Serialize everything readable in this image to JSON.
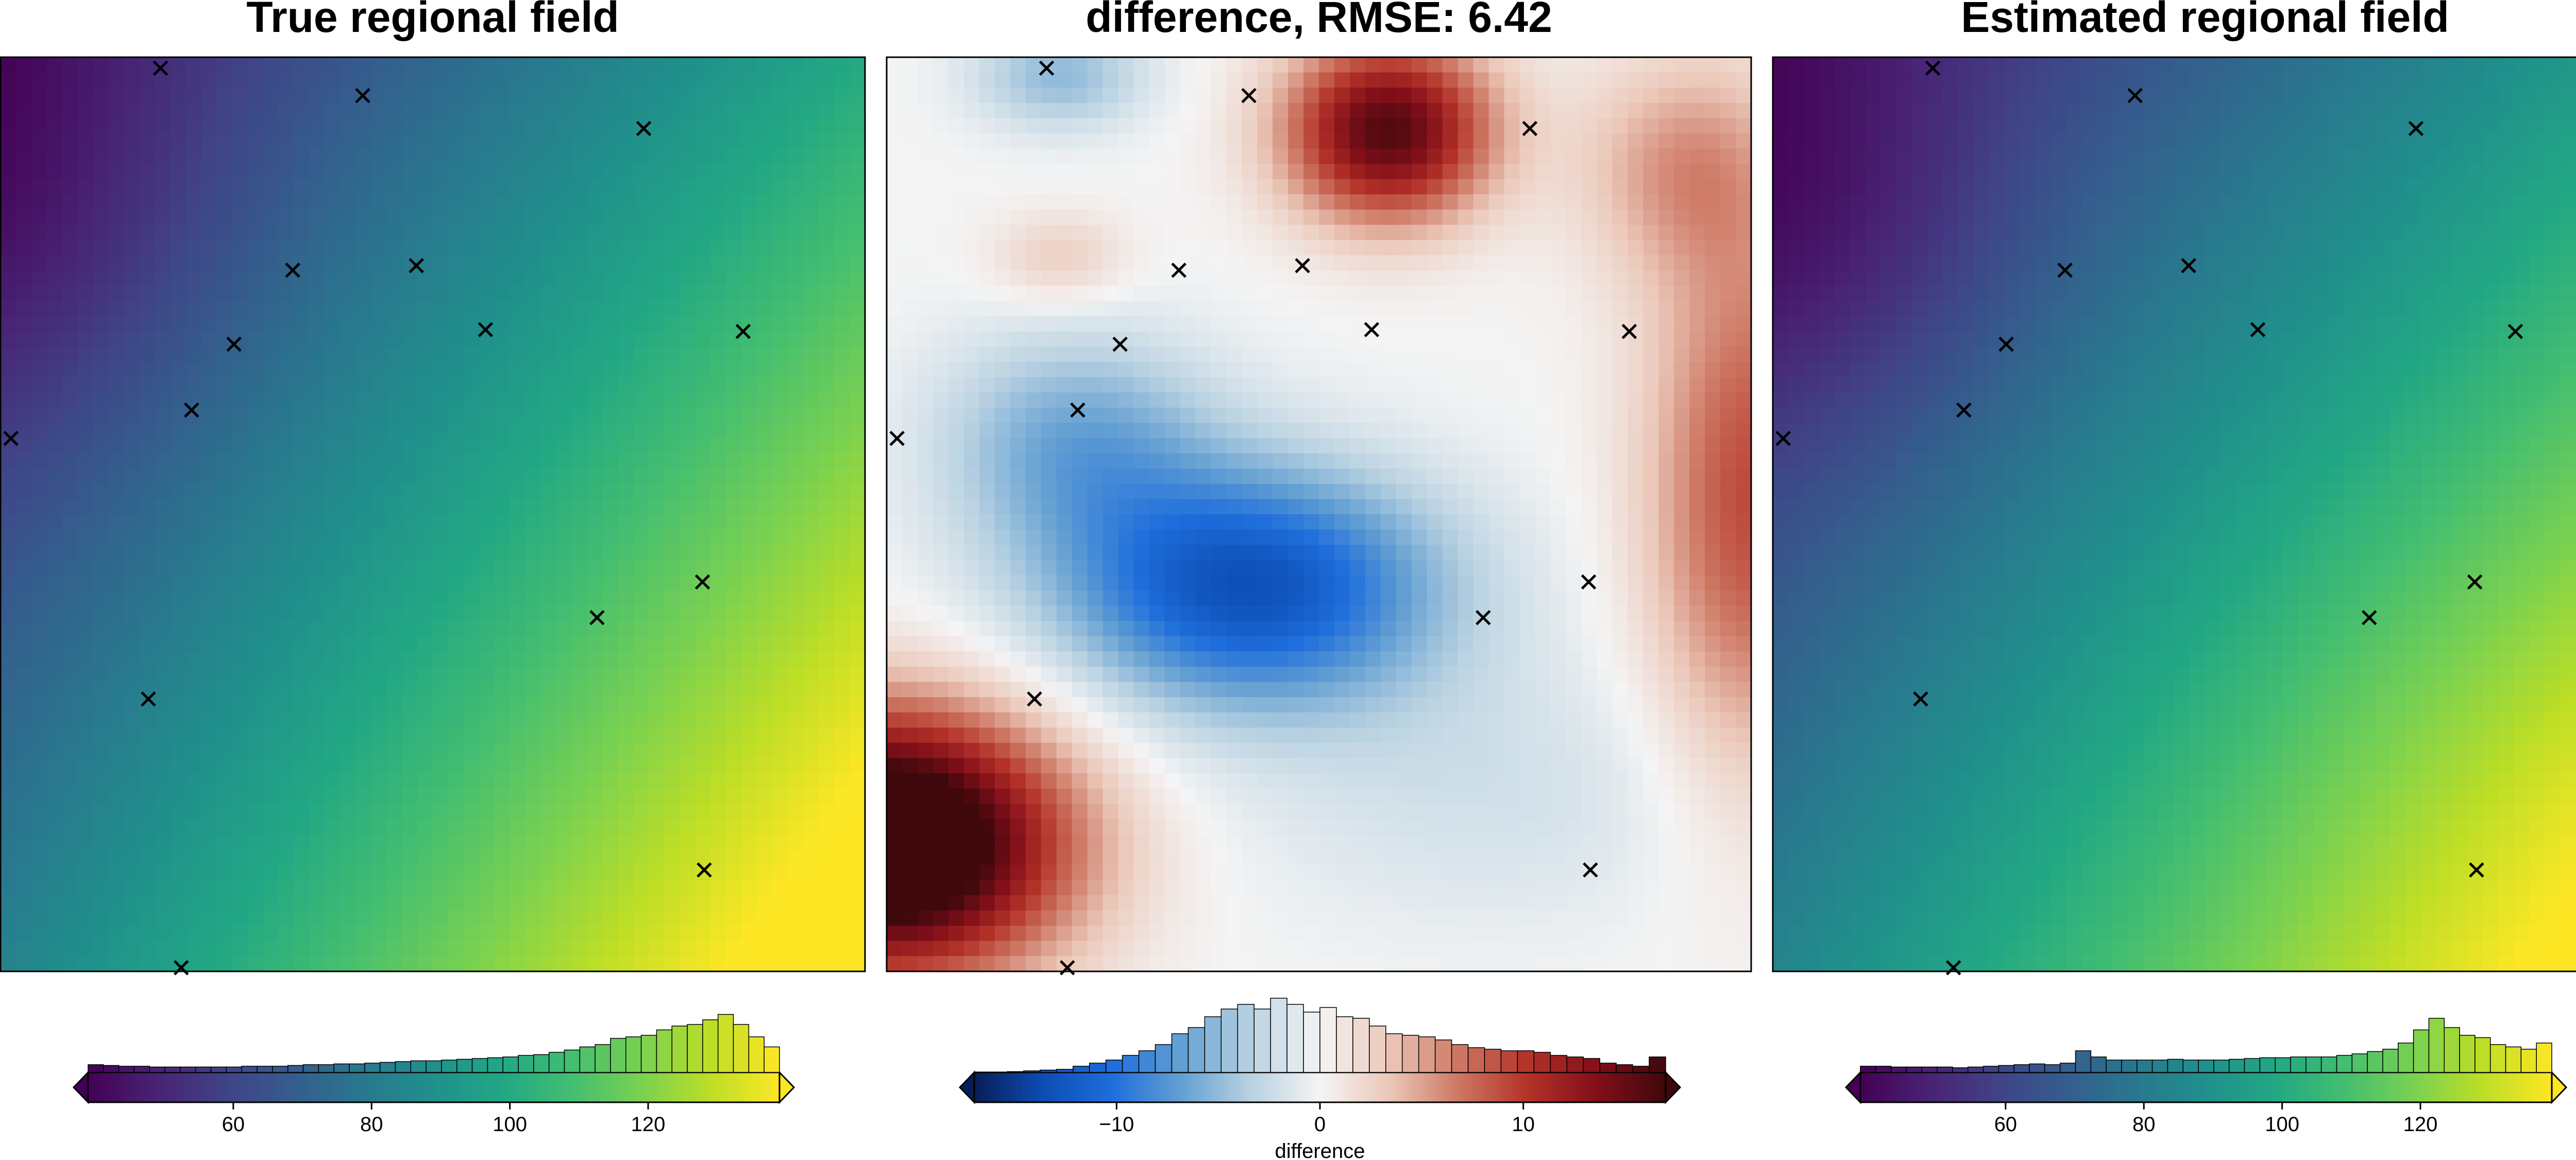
{
  "chart_data": [
    {
      "type": "heatmap",
      "title": "True regional field",
      "colormap": "viridis",
      "value_range": [
        39,
        139
      ],
      "field_description": "smooth gradient: minimum near upper-left, maximum near lower-right",
      "points_marker": "x",
      "points": [
        [
          0.185,
          0.012
        ],
        [
          0.419,
          0.042
        ],
        [
          0.744,
          0.078
        ],
        [
          0.338,
          0.233
        ],
        [
          0.481,
          0.228
        ],
        [
          0.859,
          0.3
        ],
        [
          0.27,
          0.314
        ],
        [
          0.561,
          0.298
        ],
        [
          0.221,
          0.386
        ],
        [
          0.012,
          0.417
        ],
        [
          0.812,
          0.574
        ],
        [
          0.69,
          0.613
        ],
        [
          0.171,
          0.702
        ],
        [
          0.814,
          0.889
        ],
        [
          0.209,
          0.996
        ]
      ],
      "colorbar": {
        "ticks": [
          60,
          80,
          100,
          120
        ],
        "label": "",
        "histogram_counts": [
          0.1,
          0.09,
          0.08,
          0.08,
          0.07,
          0.07,
          0.07,
          0.07,
          0.07,
          0.07,
          0.08,
          0.08,
          0.08,
          0.09,
          0.1,
          0.1,
          0.11,
          0.11,
          0.12,
          0.13,
          0.14,
          0.15,
          0.15,
          0.16,
          0.17,
          0.18,
          0.19,
          0.2,
          0.22,
          0.23,
          0.26,
          0.29,
          0.33,
          0.36,
          0.44,
          0.46,
          0.48,
          0.55,
          0.6,
          0.62,
          0.68,
          0.75,
          0.62,
          0.46,
          0.33
        ]
      }
    },
    {
      "type": "heatmap",
      "title": "difference, RMSE: 6.42",
      "colormap": "diverging blue-white-red",
      "value_range": [
        -17,
        17
      ],
      "field_description": "negative core in center-left, strong positive lower-left corner and upper center, positive right edge",
      "points_marker": "x",
      "points": [
        [
          0.185,
          0.012
        ],
        [
          0.419,
          0.042
        ],
        [
          0.744,
          0.078
        ],
        [
          0.338,
          0.233
        ],
        [
          0.481,
          0.228
        ],
        [
          0.859,
          0.3
        ],
        [
          0.27,
          0.314
        ],
        [
          0.561,
          0.298
        ],
        [
          0.221,
          0.386
        ],
        [
          0.012,
          0.417
        ],
        [
          0.812,
          0.574
        ],
        [
          0.69,
          0.613
        ],
        [
          0.171,
          0.702
        ],
        [
          0.814,
          0.889
        ],
        [
          0.209,
          0.996
        ]
      ],
      "colorbar": {
        "ticks": [
          -10,
          0,
          10
        ],
        "label": "difference",
        "histogram_counts": [
          0.0,
          0.0,
          0.01,
          0.02,
          0.03,
          0.04,
          0.08,
          0.12,
          0.16,
          0.22,
          0.28,
          0.36,
          0.5,
          0.58,
          0.72,
          0.82,
          0.88,
          0.82,
          0.96,
          0.88,
          0.78,
          0.84,
          0.72,
          0.7,
          0.6,
          0.5,
          0.48,
          0.46,
          0.42,
          0.36,
          0.32,
          0.3,
          0.28,
          0.28,
          0.26,
          0.22,
          0.2,
          0.18,
          0.12,
          0.1,
          0.08,
          0.2
        ]
      }
    },
    {
      "type": "heatmap",
      "title": "Estimated regional field",
      "colormap": "viridis",
      "value_range": [
        39,
        139
      ],
      "field_description": "smooth gradient: minimum near upper-left, maximum near lower-right",
      "points_marker": "x",
      "points": [
        [
          0.185,
          0.012
        ],
        [
          0.419,
          0.042
        ],
        [
          0.744,
          0.078
        ],
        [
          0.338,
          0.233
        ],
        [
          0.481,
          0.228
        ],
        [
          0.859,
          0.3
        ],
        [
          0.27,
          0.314
        ],
        [
          0.561,
          0.298
        ],
        [
          0.221,
          0.386
        ],
        [
          0.012,
          0.417
        ],
        [
          0.812,
          0.574
        ],
        [
          0.69,
          0.613
        ],
        [
          0.171,
          0.702
        ],
        [
          0.814,
          0.889
        ],
        [
          0.209,
          0.996
        ]
      ],
      "colorbar": {
        "ticks": [
          60,
          80,
          100,
          120
        ],
        "label": "",
        "histogram_counts": [
          0.08,
          0.08,
          0.07,
          0.07,
          0.07,
          0.07,
          0.06,
          0.07,
          0.08,
          0.09,
          0.1,
          0.11,
          0.1,
          0.12,
          0.28,
          0.2,
          0.16,
          0.16,
          0.16,
          0.16,
          0.17,
          0.16,
          0.16,
          0.16,
          0.17,
          0.18,
          0.19,
          0.19,
          0.2,
          0.2,
          0.2,
          0.22,
          0.24,
          0.27,
          0.3,
          0.38,
          0.55,
          0.7,
          0.58,
          0.48,
          0.45,
          0.36,
          0.33,
          0.3,
          0.38
        ]
      }
    }
  ]
}
